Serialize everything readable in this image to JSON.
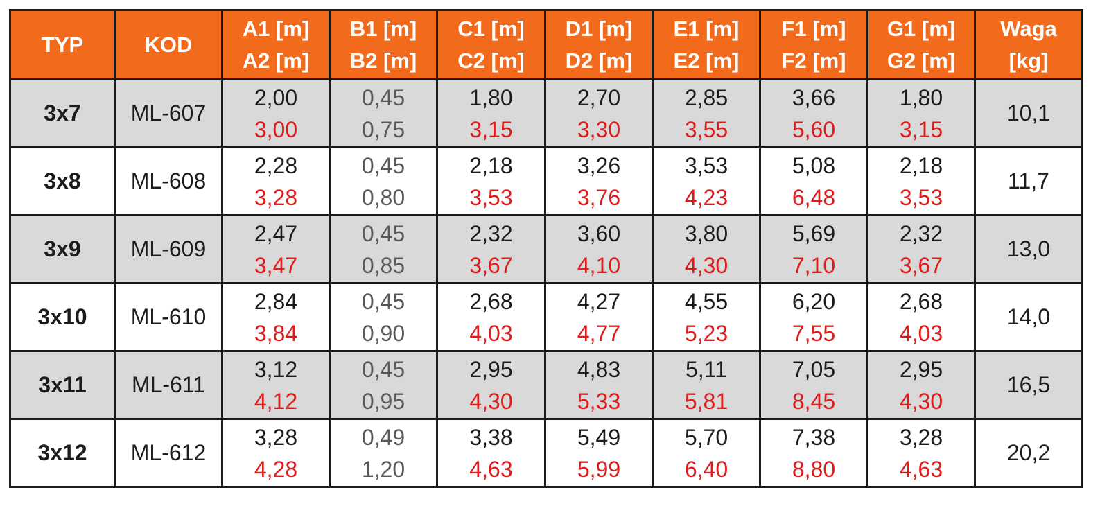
{
  "chart_data": {
    "type": "table",
    "columns": [
      {
        "line1": "TYP",
        "line2": ""
      },
      {
        "line1": "KOD",
        "line2": ""
      },
      {
        "line1": "A1 [m]",
        "line2": "A2 [m]"
      },
      {
        "line1": "B1 [m]",
        "line2": "B2 [m]"
      },
      {
        "line1": "C1 [m]",
        "line2": "C2 [m]"
      },
      {
        "line1": "D1 [m]",
        "line2": "D2 [m]"
      },
      {
        "line1": "E1 [m]",
        "line2": "E2 [m]"
      },
      {
        "line1": "F1 [m]",
        "line2": "F2 [m]"
      },
      {
        "line1": "G1 [m]",
        "line2": "G2 [m]"
      },
      {
        "line1": "Waga",
        "line2": "[kg]"
      }
    ],
    "rows": [
      {
        "typ": "3x7",
        "kod": "ML-607",
        "a": [
          "2,00",
          "3,00"
        ],
        "b": [
          "0,45",
          "0,75"
        ],
        "c": [
          "1,80",
          "3,15"
        ],
        "d": [
          "2,70",
          "3,30"
        ],
        "e": [
          "2,85",
          "3,55"
        ],
        "f": [
          "3,66",
          "5,60"
        ],
        "g": [
          "1,80",
          "3,15"
        ],
        "waga": "10,1"
      },
      {
        "typ": "3x8",
        "kod": "ML-608",
        "a": [
          "2,28",
          "3,28"
        ],
        "b": [
          "0,45",
          "0,80"
        ],
        "c": [
          "2,18",
          "3,53"
        ],
        "d": [
          "3,26",
          "3,76"
        ],
        "e": [
          "3,53",
          "4,23"
        ],
        "f": [
          "5,08",
          "6,48"
        ],
        "g": [
          "2,18",
          "3,53"
        ],
        "waga": "11,7"
      },
      {
        "typ": "3x9",
        "kod": "ML-609",
        "a": [
          "2,47",
          "3,47"
        ],
        "b": [
          "0,45",
          "0,85"
        ],
        "c": [
          "2,32",
          "3,67"
        ],
        "d": [
          "3,60",
          "4,10"
        ],
        "e": [
          "3,80",
          "4,30"
        ],
        "f": [
          "5,69",
          "7,10"
        ],
        "g": [
          "2,32",
          "3,67"
        ],
        "waga": "13,0"
      },
      {
        "typ": "3x10",
        "kod": "ML-610",
        "a": [
          "2,84",
          "3,84"
        ],
        "b": [
          "0,45",
          "0,90"
        ],
        "c": [
          "2,68",
          "4,03"
        ],
        "d": [
          "4,27",
          "4,77"
        ],
        "e": [
          "4,55",
          "5,23"
        ],
        "f": [
          "6,20",
          "7,55"
        ],
        "g": [
          "2,68",
          "4,03"
        ],
        "waga": "14,0"
      },
      {
        "typ": "3x11",
        "kod": "ML-611",
        "a": [
          "3,12",
          "4,12"
        ],
        "b": [
          "0,45",
          "0,95"
        ],
        "c": [
          "2,95",
          "4,30"
        ],
        "d": [
          "4,83",
          "5,33"
        ],
        "e": [
          "5,11",
          "5,81"
        ],
        "f": [
          "7,05",
          "8,45"
        ],
        "g": [
          "2,95",
          "4,30"
        ],
        "waga": "16,5"
      },
      {
        "typ": "3x12",
        "kod": "ML-612",
        "a": [
          "3,28",
          "4,28"
        ],
        "b": [
          "0,49",
          "1,20"
        ],
        "c": [
          "3,38",
          "4,63"
        ],
        "d": [
          "5,49",
          "5,99"
        ],
        "e": [
          "5,70",
          "6,40"
        ],
        "f": [
          "7,38",
          "8,80"
        ],
        "g": [
          "3,28",
          "4,63"
        ],
        "waga": "20,2"
      }
    ]
  },
  "colors": {
    "header_bg": "#f26b1d",
    "header_text": "#ffffff",
    "shaded_row_bg": "#d9d9d9",
    "value_black": "#1c1c1c",
    "value_red": "#e11a1a",
    "value_gray": "#5a5a5a",
    "border": "#1a1a1a"
  }
}
